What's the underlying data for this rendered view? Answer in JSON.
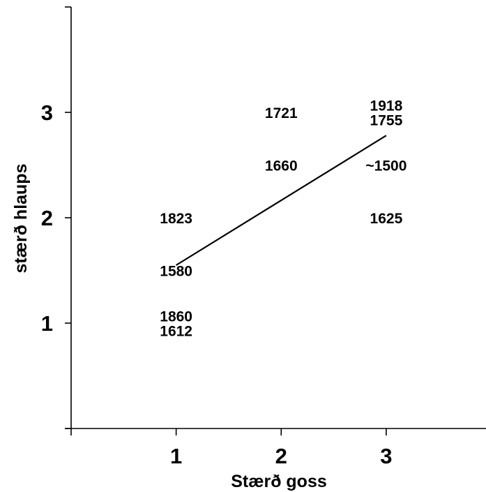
{
  "chart_data": {
    "type": "scatter",
    "title": "",
    "xlabel": "Stærð goss",
    "ylabel": "stærð hlaups",
    "xlim": [
      0,
      3.95
    ],
    "ylim": [
      0,
      4
    ],
    "xticks": [
      1,
      2,
      3
    ],
    "xtick_labels": [
      "1",
      "2",
      "3"
    ],
    "yticks": [
      1,
      2,
      3
    ],
    "ytick_labels": [
      "1",
      "2",
      "3"
    ],
    "grid": false,
    "points": [
      {
        "x": 1,
        "y": 1.07,
        "label": "1860"
      },
      {
        "x": 1,
        "y": 0.93,
        "label": "1612"
      },
      {
        "x": 1,
        "y": 1.5,
        "label": "1580"
      },
      {
        "x": 1,
        "y": 2,
        "label": "1823"
      },
      {
        "x": 2,
        "y": 3,
        "label": "1721"
      },
      {
        "x": 2,
        "y": 2.5,
        "label": "1660"
      },
      {
        "x": 3,
        "y": 3.07,
        "label": "1918"
      },
      {
        "x": 3,
        "y": 2.93,
        "label": "1755"
      },
      {
        "x": 3,
        "y": 2.5,
        "label": "~1500"
      },
      {
        "x": 3,
        "y": 2,
        "label": "1625"
      }
    ],
    "trendline": {
      "x": [
        1,
        3
      ],
      "y": [
        1.55,
        2.78
      ]
    }
  }
}
